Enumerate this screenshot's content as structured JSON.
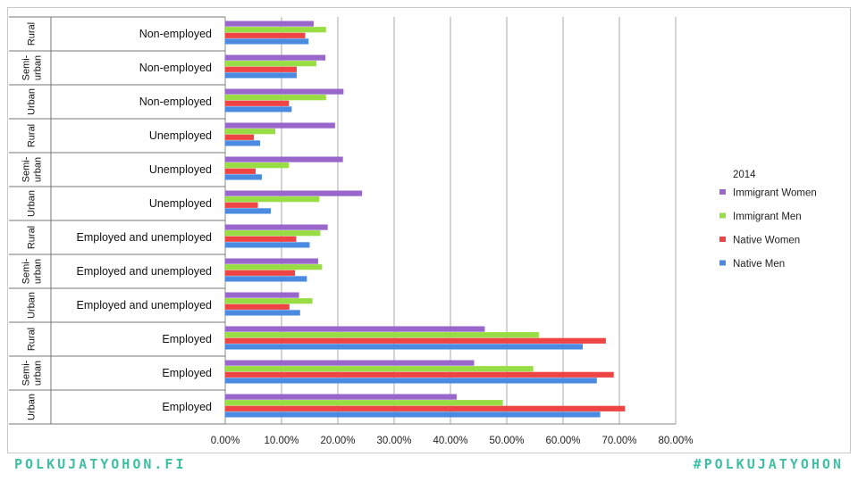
{
  "chart_data": {
    "type": "bar",
    "orientation": "horizontal",
    "rows": [
      {
        "group": "Urban",
        "category": "Employed",
        "values": [
          0.411,
          0.493,
          0.71,
          0.666
        ]
      },
      {
        "group": "Semi-urban",
        "category": "Employed",
        "values": [
          0.442,
          0.547,
          0.69,
          0.66
        ]
      },
      {
        "group": "Rural",
        "category": "Employed",
        "values": [
          0.461,
          0.557,
          0.676,
          0.635
        ]
      },
      {
        "group": "Urban",
        "category": "Employed and unemployed",
        "values": [
          0.131,
          0.155,
          0.114,
          0.133
        ]
      },
      {
        "group": "Semi-urban",
        "category": "Employed and unemployed",
        "values": [
          0.165,
          0.172,
          0.124,
          0.145
        ]
      },
      {
        "group": "Rural",
        "category": "Employed and unemployed",
        "values": [
          0.182,
          0.169,
          0.126,
          0.15
        ]
      },
      {
        "group": "Urban",
        "category": "Unemployed",
        "values": [
          0.243,
          0.167,
          0.058,
          0.081
        ]
      },
      {
        "group": "Semi-urban",
        "category": "Unemployed",
        "values": [
          0.209,
          0.113,
          0.054,
          0.065
        ]
      },
      {
        "group": "Rural",
        "category": "Unemployed",
        "values": [
          0.195,
          0.089,
          0.051,
          0.062
        ]
      },
      {
        "group": "Urban",
        "category": "Non-employed",
        "values": [
          0.21,
          0.179,
          0.113,
          0.118
        ]
      },
      {
        "group": "Semi-urban",
        "category": "Non-employed",
        "values": [
          0.178,
          0.162,
          0.127,
          0.127
        ]
      },
      {
        "group": "Rural",
        "category": "Non-employed",
        "values": [
          0.157,
          0.179,
          0.142,
          0.148
        ]
      }
    ],
    "series": [
      {
        "name": "Immigrant Women",
        "color": "#9966cc"
      },
      {
        "name": "Immigrant Men",
        "color": "#99dd44"
      },
      {
        "name": "Native Women",
        "color": "#ee4444"
      },
      {
        "name": "Native Men",
        "color": "#4a8ae0"
      }
    ],
    "legend_title": "2014",
    "legend_position": "right",
    "xlim": [
      0,
      0.8
    ],
    "x_ticks": [
      "0.00%",
      "10.00%",
      "20.00%",
      "30.00%",
      "40.00%",
      "50.00%",
      "60.00%",
      "70.00%",
      "80.00%"
    ],
    "grid": true
  },
  "footer": {
    "left": "POLKUJATYOHON.FI",
    "right": "#POLKUJATYOHON"
  }
}
